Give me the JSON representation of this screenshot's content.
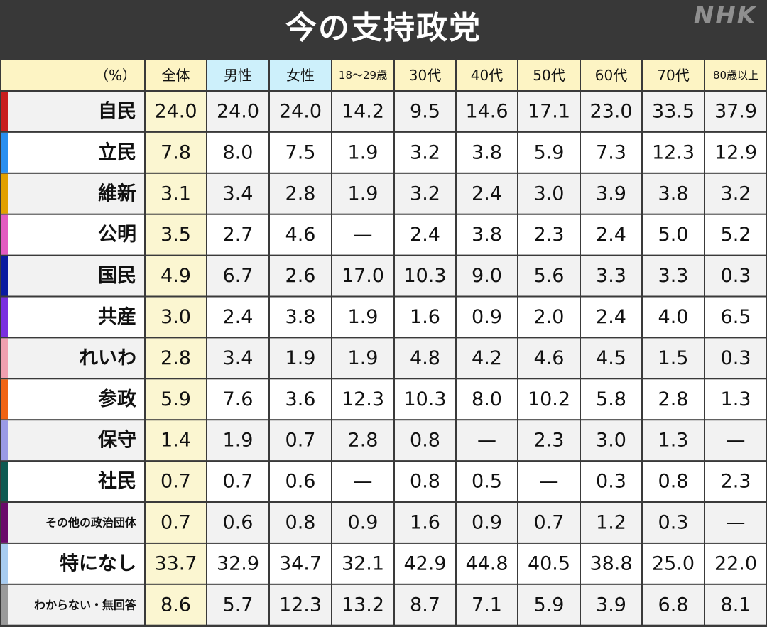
{
  "title": "今の支持政党",
  "logo_text": "NHK",
  "chart_data": {
    "type": "table",
    "title": "今の支持政党",
    "unit_label": "（%）",
    "columns": [
      "全体",
      "男性",
      "女性",
      "18～29歳",
      "30代",
      "40代",
      "50代",
      "60代",
      "70代",
      "80歳以上"
    ],
    "rows": [
      {
        "label": "自民",
        "color": "#c81e1e",
        "values": [
          "24.0",
          "24.0",
          "24.0",
          "14.2",
          "9.5",
          "14.6",
          "17.1",
          "23.0",
          "33.5",
          "37.9"
        ]
      },
      {
        "label": "立民",
        "color": "#2a8ff0",
        "values": [
          "7.8",
          "8.0",
          "7.5",
          "1.9",
          "3.2",
          "3.8",
          "5.9",
          "7.3",
          "12.3",
          "12.9"
        ]
      },
      {
        "label": "維新",
        "color": "#e2a000",
        "values": [
          "3.1",
          "3.4",
          "2.8",
          "1.9",
          "3.2",
          "2.4",
          "3.0",
          "3.9",
          "3.8",
          "3.2"
        ]
      },
      {
        "label": "公明",
        "color": "#e35bc1",
        "values": [
          "3.5",
          "2.7",
          "4.6",
          "—",
          "2.4",
          "3.8",
          "2.3",
          "2.4",
          "5.0",
          "5.2"
        ]
      },
      {
        "label": "国民",
        "color": "#0a1aa0",
        "values": [
          "4.9",
          "6.7",
          "2.6",
          "17.0",
          "10.3",
          "9.0",
          "5.6",
          "3.3",
          "3.3",
          "0.3"
        ]
      },
      {
        "label": "共産",
        "color": "#7a2fe0",
        "values": [
          "3.0",
          "2.4",
          "3.8",
          "1.9",
          "1.6",
          "0.9",
          "2.0",
          "2.4",
          "4.0",
          "6.5"
        ]
      },
      {
        "label": "れいわ",
        "color": "#f0a0b0",
        "values": [
          "2.8",
          "3.4",
          "1.9",
          "1.9",
          "4.8",
          "4.2",
          "4.6",
          "4.5",
          "1.5",
          "0.3"
        ]
      },
      {
        "label": "参政",
        "color": "#f06414",
        "values": [
          "5.9",
          "7.6",
          "3.6",
          "12.3",
          "10.3",
          "8.0",
          "10.2",
          "5.8",
          "2.8",
          "1.3"
        ]
      },
      {
        "label": "保守",
        "color": "#9a9ae6",
        "values": [
          "1.4",
          "1.9",
          "0.7",
          "2.8",
          "0.8",
          "—",
          "2.3",
          "3.0",
          "1.3",
          "—"
        ]
      },
      {
        "label": "社民",
        "color": "#0e5a52",
        "values": [
          "0.7",
          "0.7",
          "0.6",
          "—",
          "0.8",
          "0.5",
          "—",
          "0.3",
          "0.8",
          "2.3"
        ]
      },
      {
        "label": "その他の政治団体",
        "color": "#6a0a6a",
        "values": [
          "0.7",
          "0.6",
          "0.8",
          "0.9",
          "1.6",
          "0.9",
          "0.7",
          "1.2",
          "0.3",
          "—"
        ]
      },
      {
        "label": "特になし",
        "color": "#a8ccf0",
        "values": [
          "33.7",
          "32.9",
          "34.7",
          "32.1",
          "42.9",
          "44.8",
          "40.5",
          "38.8",
          "25.0",
          "22.0"
        ]
      },
      {
        "label": "わからない・無回答",
        "color": "#9a9a9a",
        "values": [
          "8.6",
          "5.7",
          "12.3",
          "13.2",
          "8.7",
          "7.1",
          "5.9",
          "3.9",
          "6.8",
          "8.1"
        ]
      }
    ],
    "header_colors": {
      "default": "#fdf4c4",
      "gender": "#cdf0fb"
    },
    "column_colors": {
      "overall": "#fbf6d1",
      "even_row": "#f2f2f2",
      "odd_row": "#ffffff"
    }
  }
}
